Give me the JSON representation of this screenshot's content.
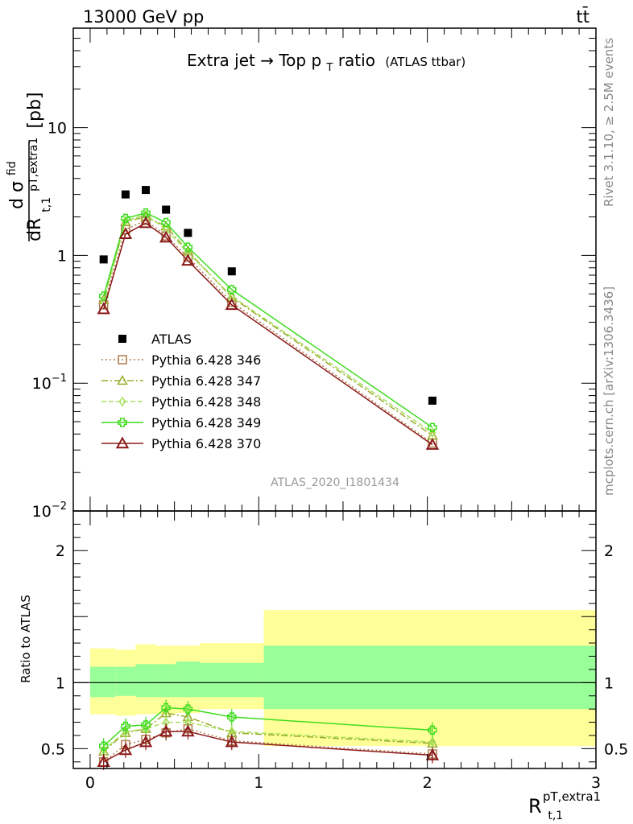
{
  "header": {
    "left": "13000 GeV pp",
    "right": "tt̄"
  },
  "side_text": {
    "rivet": "Rivet 3.1.10, ≥ 2.5M events",
    "mcplots": "mcplots.cern.ch [arXiv:1306.3436]"
  },
  "analysis_id": "ATLAS_2020_I1801434",
  "chart_data": [
    {
      "type": "scatter",
      "title": "Extra jet→ Top p_T ratio",
      "title_main": "Extra jet",
      "title_mid": " Top p",
      "title_sub": "T",
      "title_tail": " ratio",
      "title_note": "(ATLAS ttbar)",
      "ylabel": "dσ^fid / dR_{t,1}^{pT,extra1} [pb]",
      "ylabel_num_d": "d",
      "ylabel_sigma": "σ",
      "ylabel_fid": "fid",
      "ylabel_den": "dR",
      "ylabel_sub": "pT,extra1",
      "ylabel_sub2": "t,1",
      "ylabel_unit": "[pb]",
      "yscale": "log",
      "ylim": [
        0.01,
        60
      ],
      "xlim": [
        -0.1,
        3.0
      ],
      "yticks": [
        {
          "v": 0.01,
          "label": "10",
          "sup": "−2"
        },
        {
          "v": 0.1,
          "label": "10",
          "sup": "−1"
        },
        {
          "v": 1,
          "label": "1",
          "sup": ""
        },
        {
          "v": 10,
          "label": "10",
          "sup": ""
        }
      ],
      "legend_position": "lower-left",
      "x": [
        0.08,
        0.21,
        0.33,
        0.45,
        0.58,
        0.84,
        2.03
      ],
      "series": [
        {
          "name": "ATLAS",
          "style": "data",
          "color": "#000000",
          "values": [
            0.93,
            3.0,
            3.25,
            2.28,
            1.5,
            0.75,
            0.073
          ]
        },
        {
          "name": "Pythia 6.428 346",
          "style": "square",
          "dash": "2,3",
          "color": "#b07c4f",
          "values": [
            0.41,
            1.59,
            1.88,
            1.42,
            0.97,
            0.43,
            0.034
          ]
        },
        {
          "name": "Pythia 6.428 347",
          "style": "triangle",
          "dash": "8,3,2,3",
          "color": "#9aab2a",
          "values": [
            0.45,
            1.83,
            2.01,
            1.69,
            1.08,
            0.47,
            0.039
          ]
        },
        {
          "name": "Pythia 6.428 348",
          "style": "diamond",
          "dash": "6,3",
          "color": "#a6e05a",
          "values": [
            0.44,
            1.86,
            2.08,
            1.6,
            1.05,
            0.48,
            0.041
          ]
        },
        {
          "name": "Pythia 6.428 349",
          "style": "cross",
          "dash": "",
          "color": "#3fdc1f",
          "values": [
            0.48,
            1.95,
            2.15,
            1.81,
            1.16,
            0.54,
            0.045
          ]
        },
        {
          "name": "Pythia 6.428 370",
          "style": "triangle-open",
          "dash": "",
          "color": "#8b1a1a",
          "values": [
            0.38,
            1.47,
            1.79,
            1.38,
            0.91,
            0.41,
            0.033
          ]
        }
      ]
    },
    {
      "type": "scatter",
      "ylabel": "Ratio to ATLAS",
      "xlabel": "R_{t,1}^{pT,extra1}",
      "xlabel_main": "R",
      "xlabel_sup": "pT,extra1",
      "xlabel_sub": "t,1",
      "ylim": [
        0.35,
        2.3
      ],
      "xlim": [
        -0.1,
        3.0
      ],
      "yticks": [
        0.5,
        1,
        2
      ],
      "xticks": [
        0,
        1,
        2,
        3
      ],
      "bands": {
        "edges": [
          0.0,
          0.15,
          0.27,
          0.39,
          0.51,
          0.65,
          1.03,
          3.0
        ],
        "outer_lo": [
          0.76,
          0.75,
          0.76,
          0.76,
          0.77,
          0.8,
          0.52
        ],
        "outer_hi": [
          1.26,
          1.25,
          1.29,
          1.28,
          1.28,
          1.3,
          1.55
        ],
        "inner_lo": [
          0.89,
          0.9,
          0.89,
          0.89,
          0.89,
          0.89,
          0.8
        ],
        "inner_hi": [
          1.12,
          1.12,
          1.14,
          1.14,
          1.16,
          1.15,
          1.28
        ],
        "outer_color": "#ffff99",
        "inner_color": "#99ff99"
      },
      "x": [
        0.08,
        0.21,
        0.33,
        0.45,
        0.58,
        0.84,
        2.03
      ],
      "series": [
        {
          "name": "Pythia 6.428 346",
          "values": [
            0.4,
            0.53,
            0.57,
            0.62,
            0.65,
            0.56,
            0.46
          ]
        },
        {
          "name": "Pythia 6.428 347",
          "values": [
            0.48,
            0.62,
            0.65,
            0.77,
            0.74,
            0.62,
            0.54
          ]
        },
        {
          "name": "Pythia 6.428 348",
          "values": [
            0.49,
            0.63,
            0.65,
            0.7,
            0.7,
            0.63,
            0.55
          ]
        },
        {
          "name": "Pythia 6.428 349",
          "values": [
            0.52,
            0.67,
            0.68,
            0.81,
            0.8,
            0.74,
            0.64
          ]
        },
        {
          "name": "Pythia 6.428 370",
          "values": [
            0.4,
            0.49,
            0.55,
            0.63,
            0.63,
            0.55,
            0.45
          ]
        }
      ]
    }
  ]
}
